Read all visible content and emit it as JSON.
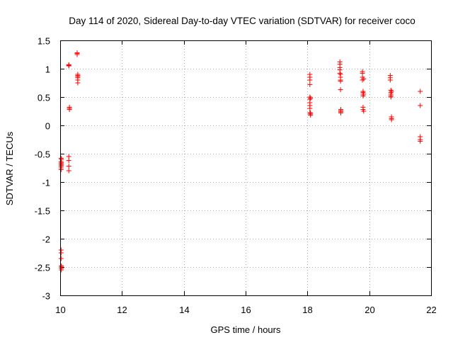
{
  "chart_data": {
    "type": "scatter",
    "title": "Day 114 of 2020, Sidereal Day-to-day VTEC variation (SDTVAR) for receiver coco",
    "xlabel": "GPS time / hours",
    "ylabel": "SDTVAR / TECUs",
    "xlim": [
      10,
      22
    ],
    "ylim": [
      -3,
      1.5
    ],
    "xticks": [
      10,
      12,
      14,
      16,
      18,
      20,
      22
    ],
    "yticks": [
      -3,
      -2.5,
      -2,
      -1.5,
      -1,
      -0.5,
      0,
      0.5,
      1,
      1.5
    ],
    "grid": true,
    "marker": "plus",
    "color": "#ff0000",
    "x": [
      10.03,
      10.03,
      10.03,
      10.03,
      10.03,
      10.03,
      10.03,
      10.03,
      10.03,
      10.04,
      10.04,
      10.04,
      10.04,
      10.04,
      10.04,
      10.04,
      10.28,
      10.28,
      10.28,
      10.28,
      10.28,
      10.28,
      10.28,
      10.3,
      10.3,
      10.3,
      10.55,
      10.55,
      10.55,
      10.57,
      10.57,
      10.57,
      10.57,
      10.57,
      10.57,
      18.08,
      18.08,
      18.08,
      18.08,
      18.08,
      18.08,
      18.08,
      18.08,
      18.08,
      18.08,
      18.1,
      18.1,
      18.1,
      18.1,
      19.05,
      19.05,
      19.05,
      19.05,
      19.05,
      19.07,
      19.07,
      19.07,
      19.07,
      19.07,
      19.08,
      19.08,
      19.08,
      19.08,
      19.78,
      19.78,
      19.78,
      19.78,
      19.8,
      19.8,
      19.8,
      19.8,
      19.8,
      19.8,
      19.82,
      19.82,
      19.82,
      20.68,
      20.68,
      20.68,
      20.7,
      20.7,
      20.7,
      20.7,
      20.7,
      20.72,
      20.72,
      20.72,
      20.72,
      21.65,
      21.65,
      21.65,
      21.65,
      21.65
    ],
    "y": [
      -0.58,
      -0.64,
      -0.68,
      -0.72,
      -0.75,
      -0.78,
      -2.2,
      -2.25,
      -2.35,
      -2.48,
      -2.5,
      -2.52,
      -2.55,
      -0.7,
      -0.66,
      -0.6,
      1.05,
      1.07,
      1.06,
      -0.55,
      -0.62,
      -0.72,
      -0.8,
      0.3,
      0.32,
      0.28,
      1.25,
      1.28,
      1.27,
      0.75,
      0.8,
      0.84,
      0.86,
      0.88,
      0.9,
      0.9,
      0.85,
      0.8,
      0.72,
      0.5,
      0.46,
      0.4,
      0.35,
      0.3,
      0.22,
      0.2,
      0.22,
      0.18,
      0.48,
      1.12,
      1.08,
      1.02,
      0.98,
      0.92,
      0.9,
      0.85,
      0.8,
      0.78,
      0.63,
      0.28,
      0.26,
      0.24,
      0.22,
      0.95,
      0.92,
      0.85,
      0.8,
      0.6,
      0.58,
      0.55,
      0.52,
      0.32,
      0.28,
      0.25,
      0.55,
      0.82,
      0.88,
      0.84,
      0.8,
      0.62,
      0.58,
      0.55,
      0.52,
      0.5,
      0.15,
      0.12,
      0.1,
      0.6,
      0.6,
      0.35,
      -0.2,
      -0.25,
      -0.28
    ]
  }
}
